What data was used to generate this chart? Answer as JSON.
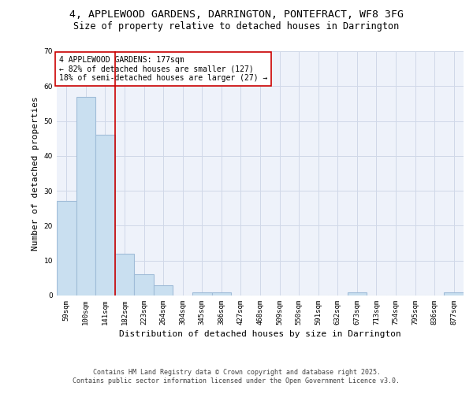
{
  "title_line1": "4, APPLEWOOD GARDENS, DARRINGTON, PONTEFRACT, WF8 3FG",
  "title_line2": "Size of property relative to detached houses in Darrington",
  "xlabel": "Distribution of detached houses by size in Darrington",
  "ylabel": "Number of detached properties",
  "categories": [
    "59sqm",
    "100sqm",
    "141sqm",
    "182sqm",
    "223sqm",
    "264sqm",
    "304sqm",
    "345sqm",
    "386sqm",
    "427sqm",
    "468sqm",
    "509sqm",
    "550sqm",
    "591sqm",
    "632sqm",
    "673sqm",
    "713sqm",
    "754sqm",
    "795sqm",
    "836sqm",
    "877sqm"
  ],
  "values": [
    27,
    57,
    46,
    12,
    6,
    3,
    0,
    1,
    1,
    0,
    0,
    0,
    0,
    0,
    0,
    1,
    0,
    0,
    0,
    0,
    1
  ],
  "bar_color": "#c9dff0",
  "bar_edge_color": "#a0bcd8",
  "bar_linewidth": 0.8,
  "grid_color": "#d0d8e8",
  "background_color": "#eef2fa",
  "vline_x": 2.5,
  "vline_color": "#cc0000",
  "vline_linewidth": 1.2,
  "annotation_text": "4 APPLEWOOD GARDENS: 177sqm\n← 82% of detached houses are smaller (127)\n18% of semi-detached houses are larger (27) →",
  "annotation_box_color": "#ffffff",
  "annotation_box_edge": "#cc0000",
  "annotation_fontsize": 7.0,
  "ylim": [
    0,
    70
  ],
  "yticks": [
    0,
    10,
    20,
    30,
    40,
    50,
    60,
    70
  ],
  "footer_line1": "Contains HM Land Registry data © Crown copyright and database right 2025.",
  "footer_line2": "Contains public sector information licensed under the Open Government Licence v3.0.",
  "title_fontsize": 9.5,
  "subtitle_fontsize": 8.5,
  "tick_fontsize": 6.5,
  "xlabel_fontsize": 8,
  "ylabel_fontsize": 8,
  "footer_fontsize": 6.0
}
